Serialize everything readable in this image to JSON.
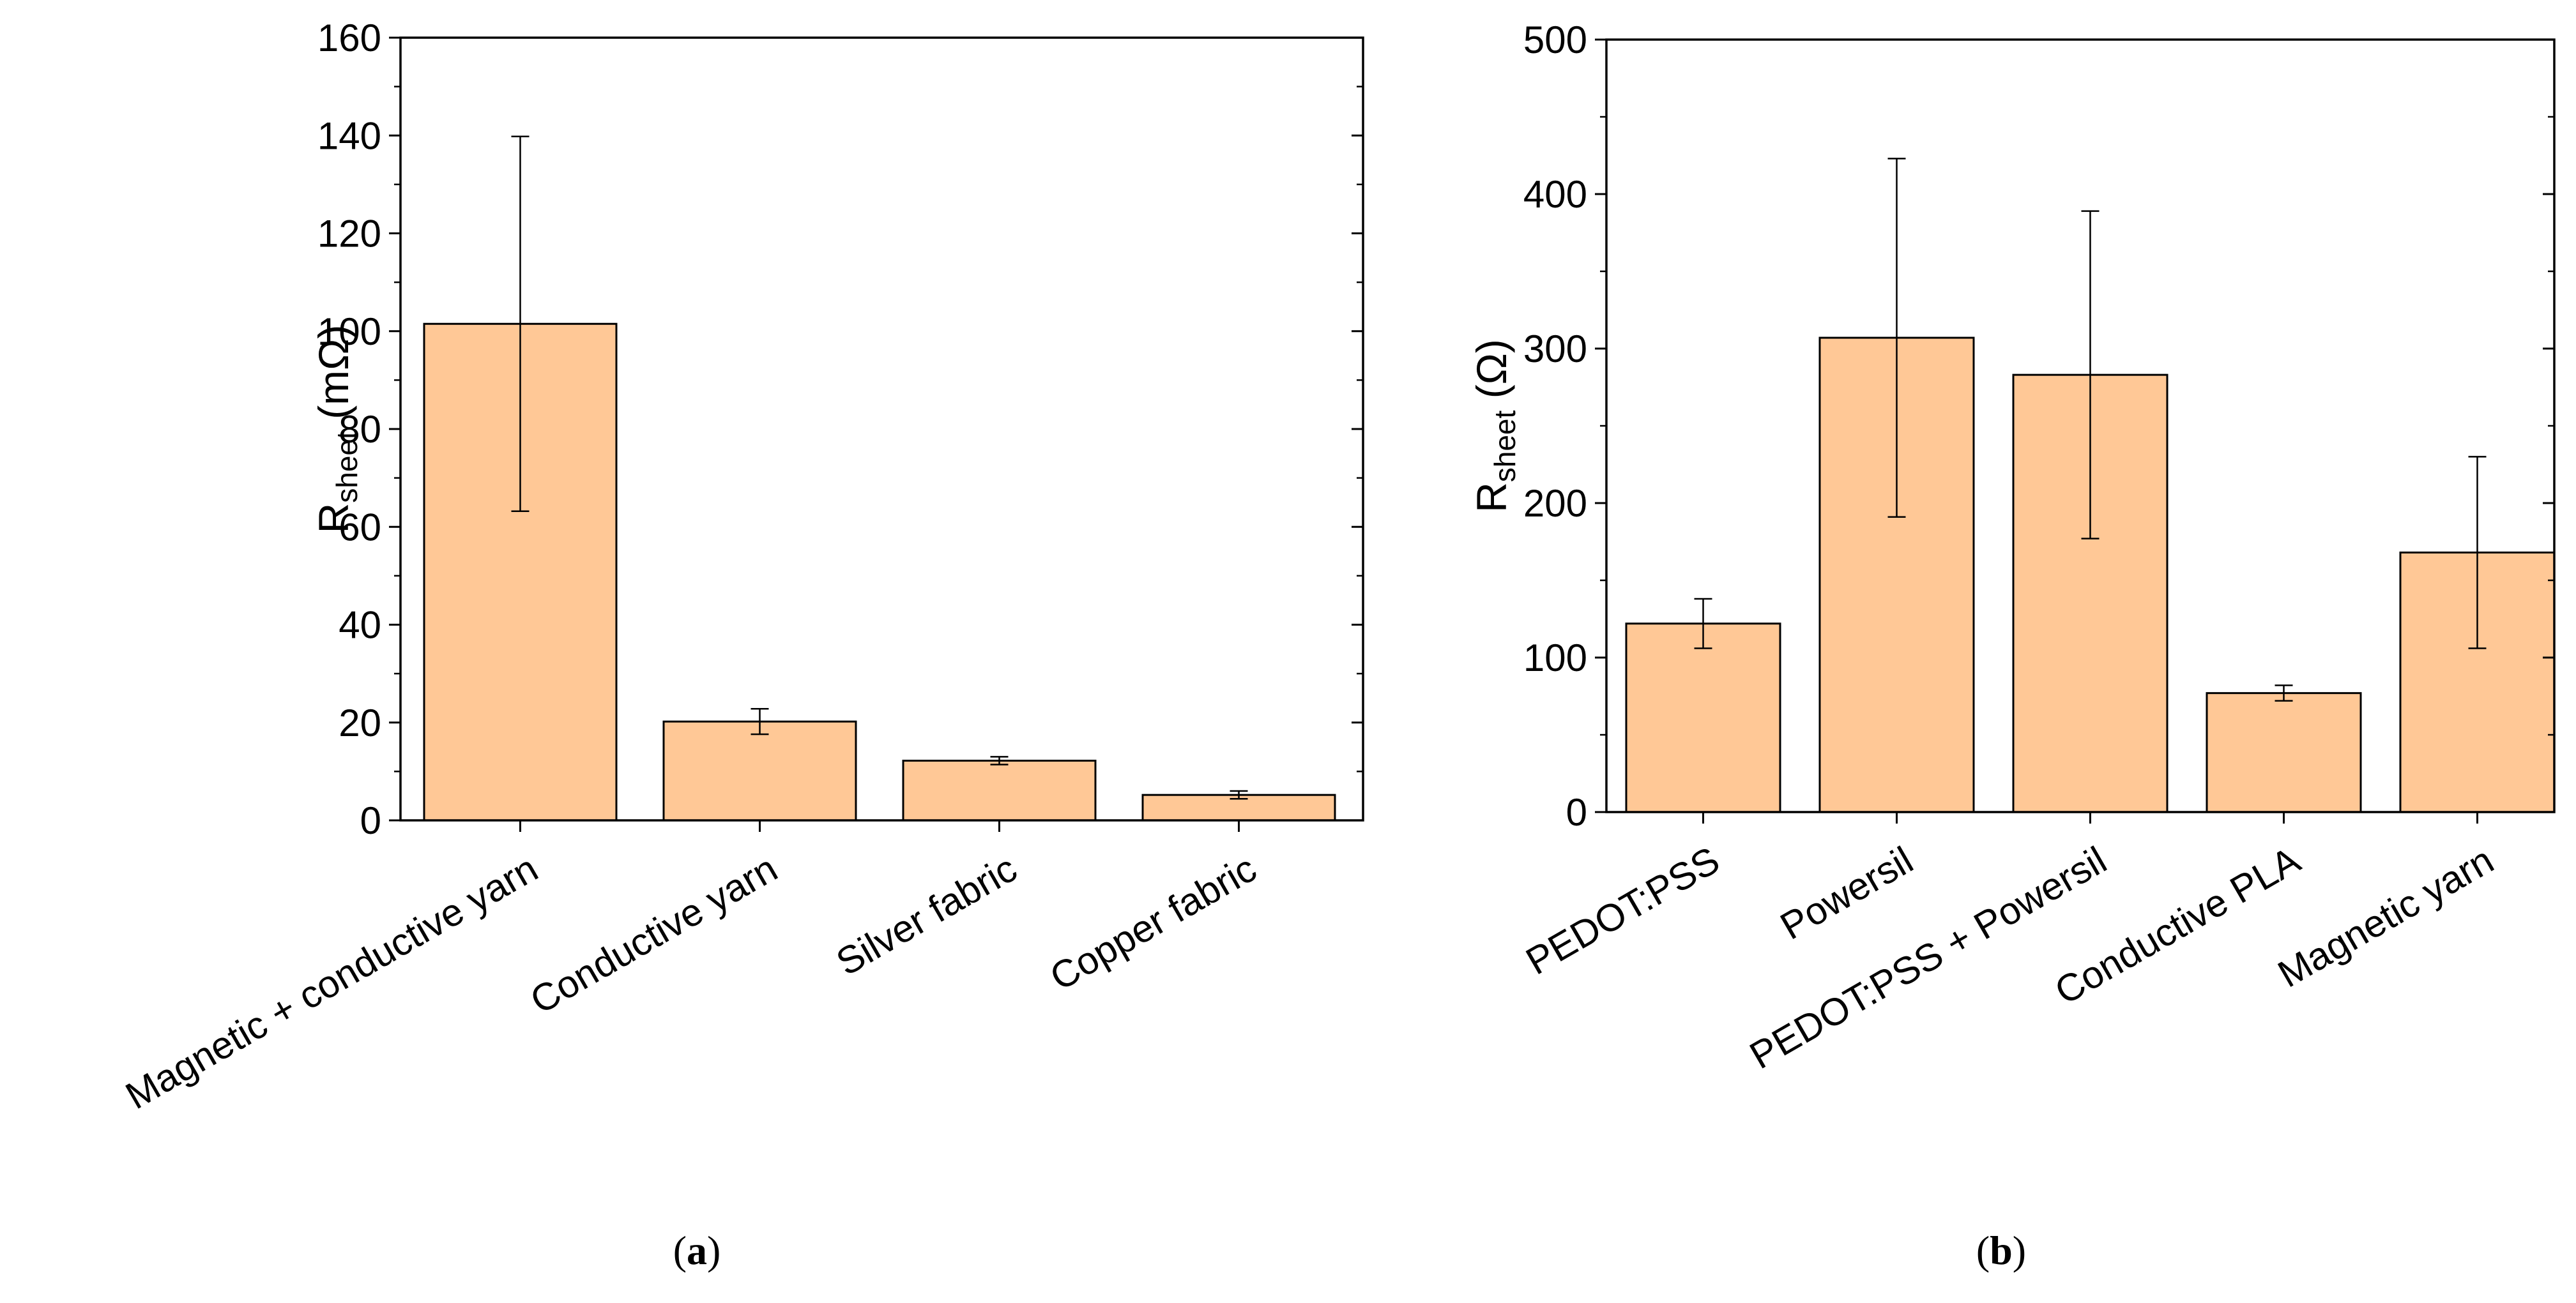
{
  "figure_labels": {
    "a": "a",
    "b": "b"
  },
  "chart_data": [
    {
      "id": "a",
      "type": "bar",
      "categories": [
        "Magnetic + conductive yarn",
        "Conductive yarn",
        "Silver fabric",
        "Copper fabric"
      ],
      "values": [
        101.5,
        20.2,
        12.2,
        5.2
      ],
      "errors": [
        38.3,
        2.6,
        0.8,
        0.8
      ],
      "ylabel_main": "R",
      "ylabel_sub": "sheet",
      "ylabel_unit": " (mΩ)",
      "ylim": [
        0,
        160
      ],
      "yticks": [
        0,
        20,
        40,
        60,
        80,
        100,
        120,
        140,
        160
      ],
      "bar_color": "#FFC896",
      "grid": false
    },
    {
      "id": "b",
      "type": "bar",
      "categories": [
        "PEDOT:PSS",
        "Powersil",
        "PEDOT:PSS + Powersil",
        "Conductive PLA",
        "Magnetic yarn"
      ],
      "values": [
        122,
        307,
        283,
        77,
        168
      ],
      "errors": [
        16,
        116,
        106,
        5,
        62
      ],
      "ylabel_main": "R",
      "ylabel_sub": "sheet",
      "ylabel_unit": " (Ω)",
      "ylim": [
        0,
        500
      ],
      "yticks": [
        0,
        100,
        200,
        300,
        400,
        500
      ],
      "bar_color": "#FFC896",
      "grid": false
    }
  ]
}
